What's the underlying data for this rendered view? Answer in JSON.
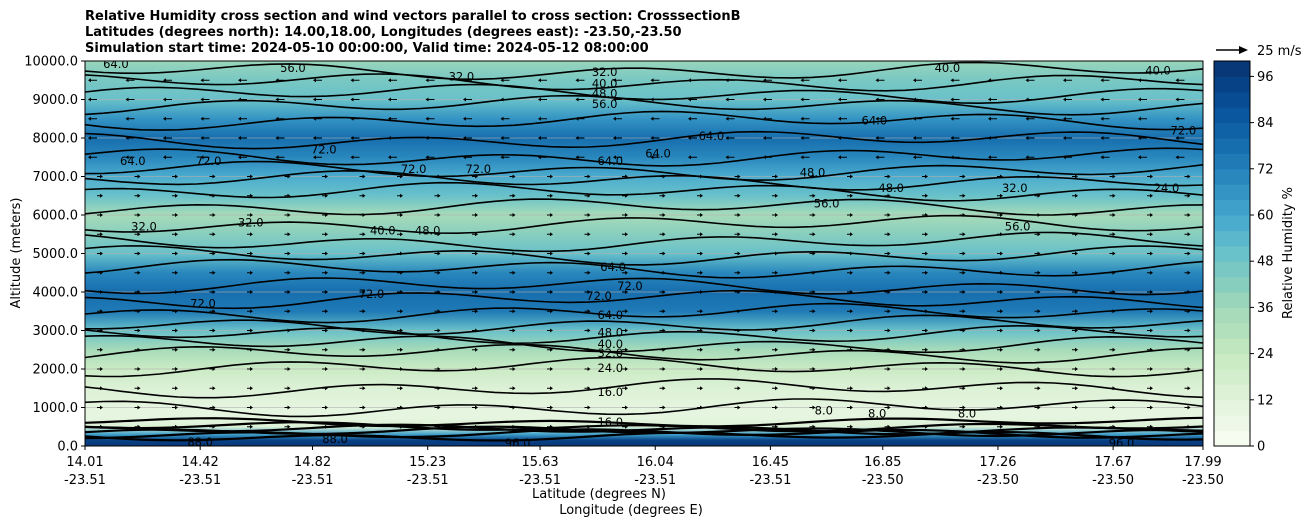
{
  "chart_data": {
    "type": "heatmap",
    "subtype": "filled contour cross-section with wind vectors",
    "title_lines": [
      "Relative Humidity cross section and wind vectors parallel to cross section: CrosssectionB",
      "Latitudes (degrees north): 14.00,18.00, Longitudes (degrees east): -23.50,-23.50",
      "Simulation start time: 2024-05-10 00:00:00, Valid time: 2024-05-12 08:00:00"
    ],
    "ylabel": "Altitude (meters)",
    "xlabel_lat": "Latitude (degrees N)",
    "xlabel_lon": "Longitude (degrees E)",
    "ylim": [
      0,
      10000
    ],
    "y_ticks": [
      "0.0",
      "1000.0",
      "2000.0",
      "3000.0",
      "4000.0",
      "5000.0",
      "6000.0",
      "7000.0",
      "8000.0",
      "9000.0",
      "10000.0"
    ],
    "x_ticks": [
      {
        "lat": "14.01",
        "lon": "-23.51"
      },
      {
        "lat": "14.42",
        "lon": "-23.51"
      },
      {
        "lat": "14.82",
        "lon": "-23.51"
      },
      {
        "lat": "15.23",
        "lon": "-23.51"
      },
      {
        "lat": "15.63",
        "lon": "-23.51"
      },
      {
        "lat": "16.04",
        "lon": "-23.51"
      },
      {
        "lat": "16.45",
        "lon": "-23.51"
      },
      {
        "lat": "16.85",
        "lon": "-23.50"
      },
      {
        "lat": "17.26",
        "lon": "-23.50"
      },
      {
        "lat": "17.67",
        "lon": "-23.50"
      },
      {
        "lat": "17.99",
        "lon": "-23.50"
      }
    ],
    "colorbar": {
      "label": "Relative Humidity %",
      "range": [
        0,
        100
      ],
      "ticks": [
        "0",
        "12",
        "24",
        "36",
        "48",
        "60",
        "72",
        "84",
        "96"
      ],
      "levels": [
        0,
        4,
        8,
        12,
        16,
        20,
        24,
        28,
        32,
        36,
        40,
        44,
        48,
        52,
        56,
        60,
        64,
        68,
        72,
        76,
        80,
        84,
        88,
        92,
        96,
        100
      ],
      "colors": [
        "#f7fcf0",
        "#eef8e8",
        "#e5f5df",
        "#dcf1d6",
        "#d3eecd",
        "#cbebc5",
        "#c0e6bf",
        "#b3e0bc",
        "#a7dbb9",
        "#98d5bb",
        "#88cebe",
        "#79c8c3",
        "#69c1c9",
        "#5ab7cc",
        "#4cacce",
        "#3fa0ca",
        "#3494c4",
        "#2987bd",
        "#1f7ab6",
        "#176eae",
        "#1062a7",
        "#0b579f",
        "#084c93",
        "#084286",
        "#083878"
      ]
    },
    "quiver_key": {
      "label": "25 m/s"
    },
    "rh_profile": {
      "altitude_m": [
        0,
        150,
        300,
        500,
        700,
        1000,
        1500,
        2000,
        2500,
        3000,
        3500,
        4000,
        4500,
        5000,
        5500,
        6000,
        6500,
        7000,
        7500,
        8000,
        8500,
        9000,
        9500,
        10000
      ],
      "rh_percent": [
        98,
        92,
        60,
        12,
        9,
        8,
        12,
        22,
        32,
        50,
        72,
        78,
        68,
        50,
        40,
        34,
        48,
        58,
        70,
        76,
        66,
        50,
        44,
        38
      ]
    },
    "contour_labels": [
      {
        "text": "64.0",
        "lat": 14.12,
        "alt": 9920
      },
      {
        "text": "56.0",
        "lat": 14.75,
        "alt": 9820
      },
      {
        "text": "32.0",
        "lat": 15.35,
        "alt": 9600
      },
      {
        "text": "32.0",
        "lat": 15.86,
        "alt": 9720
      },
      {
        "text": "40.0",
        "lat": 15.86,
        "alt": 9420
      },
      {
        "text": "48.0",
        "lat": 15.86,
        "alt": 9150
      },
      {
        "text": "56.0",
        "lat": 15.86,
        "alt": 8880
      },
      {
        "text": "64.0",
        "lat": 16.24,
        "alt": 8050
      },
      {
        "text": "64.0",
        "lat": 16.82,
        "alt": 8450
      },
      {
        "text": "40.0",
        "lat": 17.08,
        "alt": 9820
      },
      {
        "text": "40.0",
        "lat": 17.83,
        "alt": 9750
      },
      {
        "text": "72.0",
        "lat": 17.92,
        "alt": 8200
      },
      {
        "text": "64.0",
        "lat": 14.18,
        "alt": 7400
      },
      {
        "text": "72.0",
        "lat": 14.45,
        "alt": 7400
      },
      {
        "text": "72.0",
        "lat": 14.86,
        "alt": 7700
      },
      {
        "text": "72.0",
        "lat": 15.18,
        "alt": 7200
      },
      {
        "text": "72.0",
        "lat": 15.41,
        "alt": 7200
      },
      {
        "text": "64.0",
        "lat": 15.88,
        "alt": 7400
      },
      {
        "text": "64.0",
        "lat": 16.05,
        "alt": 7600
      },
      {
        "text": "48.0",
        "lat": 16.6,
        "alt": 7100
      },
      {
        "text": "48.0",
        "lat": 16.88,
        "alt": 6700
      },
      {
        "text": "56.0",
        "lat": 16.65,
        "alt": 6300
      },
      {
        "text": "32.0",
        "lat": 17.32,
        "alt": 6700
      },
      {
        "text": "24.0",
        "lat": 17.86,
        "alt": 6700
      },
      {
        "text": "32.0",
        "lat": 14.22,
        "alt": 5700
      },
      {
        "text": "32.0",
        "lat": 14.6,
        "alt": 5800
      },
      {
        "text": "40.0",
        "lat": 15.07,
        "alt": 5600
      },
      {
        "text": "48.0",
        "lat": 15.23,
        "alt": 5600
      },
      {
        "text": "56.0",
        "lat": 17.33,
        "alt": 5700
      },
      {
        "text": "64.0",
        "lat": 15.89,
        "alt": 4650
      },
      {
        "text": "72.0",
        "lat": 14.43,
        "alt": 3700
      },
      {
        "text": "72.0",
        "lat": 15.03,
        "alt": 3950
      },
      {
        "text": "72.0",
        "lat": 15.84,
        "alt": 3900
      },
      {
        "text": "72.0",
        "lat": 15.95,
        "alt": 4150
      },
      {
        "text": "64.0",
        "lat": 15.88,
        "alt": 3400
      },
      {
        "text": "48.0",
        "lat": 15.88,
        "alt": 2950
      },
      {
        "text": "40.0",
        "lat": 15.88,
        "alt": 2650
      },
      {
        "text": "32.0",
        "lat": 15.88,
        "alt": 2420
      },
      {
        "text": "24.0",
        "lat": 15.88,
        "alt": 2030
      },
      {
        "text": "16.0",
        "lat": 15.88,
        "alt": 1400
      },
      {
        "text": "16.0",
        "lat": 15.88,
        "alt": 620
      },
      {
        "text": "8.0",
        "lat": 16.64,
        "alt": 920
      },
      {
        "text": "8.0",
        "lat": 16.83,
        "alt": 850
      },
      {
        "text": "8.0",
        "lat": 17.15,
        "alt": 850
      },
      {
        "text": "96.0",
        "lat": 15.55,
        "alt": 80
      },
      {
        "text": "96.0",
        "lat": 17.7,
        "alt": 80
      },
      {
        "text": "88.0",
        "lat": 14.42,
        "alt": 100
      },
      {
        "text": "88.0",
        "lat": 14.9,
        "alt": 180
      }
    ]
  }
}
